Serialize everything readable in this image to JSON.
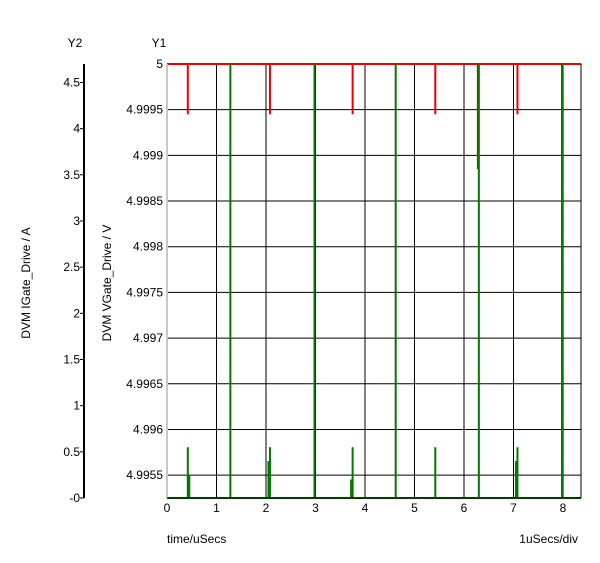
{
  "chart_data": {
    "type": "line",
    "xlabel": "time/uSecs",
    "x_scale_label": "1uSecs/div",
    "x_ticks": [
      "0",
      "1",
      "2",
      "3",
      "4",
      "5",
      "6",
      "7",
      "8"
    ],
    "xlim": [
      0,
      8.4
    ],
    "axes": {
      "y1": {
        "name": "Y1",
        "label": "DVM VGate_Drive / V",
        "ylim": [
          4.99525,
          5.0
        ],
        "ticks": [
          "5",
          "4.9995",
          "4.999",
          "4.9985",
          "4.998",
          "4.9975",
          "4.997",
          "4.9965",
          "4.996",
          "4.9955"
        ],
        "tick_values": [
          5.0,
          4.9995,
          4.999,
          4.9985,
          4.998,
          4.9975,
          4.997,
          4.9965,
          4.996,
          4.9955
        ]
      },
      "y2": {
        "name": "Y2",
        "label": "DVM IGate_Drive / A",
        "ylim": [
          0,
          4.7
        ],
        "ticks": [
          "4.5",
          "4",
          "3.5",
          "3",
          "2.5",
          "2",
          "1.5",
          "1",
          "0.5",
          "-0"
        ],
        "tick_values": [
          4.5,
          4.0,
          3.5,
          3.0,
          2.5,
          2.0,
          1.5,
          1.0,
          0.5,
          0.0
        ]
      }
    },
    "grid": true,
    "series": [
      {
        "axis": "y1",
        "color": "#ee0000",
        "baseline": 5.0,
        "spikes": [
          {
            "x": 0.42,
            "y": 4.99945
          },
          {
            "x": 2.08,
            "y": 4.99945
          },
          {
            "x": 3.75,
            "y": 4.99945
          },
          {
            "x": 5.42,
            "y": 4.99945
          },
          {
            "x": 6.28,
            "y": 4.99885
          },
          {
            "x": 7.08,
            "y": 4.99945
          }
        ]
      },
      {
        "axis": "y2",
        "color": "#007a00",
        "baseline": 0.0,
        "spikes": [
          {
            "x": 0.42,
            "y": 0.55
          },
          {
            "x": 0.45,
            "y": 0.25
          },
          {
            "x": 1.28,
            "y": 4.7
          },
          {
            "x": 2.08,
            "y": 0.55
          },
          {
            "x": 2.05,
            "y": 0.4
          },
          {
            "x": 2.98,
            "y": 4.7
          },
          {
            "x": 3.75,
            "y": 0.55
          },
          {
            "x": 3.72,
            "y": 0.2
          },
          {
            "x": 4.62,
            "y": 4.7
          },
          {
            "x": 5.42,
            "y": 0.55
          },
          {
            "x": 6.3,
            "y": 4.7
          },
          {
            "x": 7.08,
            "y": 0.55
          },
          {
            "x": 7.05,
            "y": 0.4
          },
          {
            "x": 7.98,
            "y": 4.7
          }
        ]
      }
    ]
  }
}
